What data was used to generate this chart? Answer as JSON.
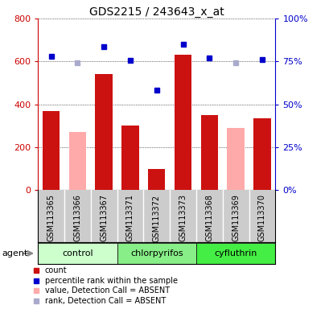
{
  "title": "GDS2215 / 243643_x_at",
  "samples": [
    "GSM113365",
    "GSM113366",
    "GSM113367",
    "GSM113371",
    "GSM113372",
    "GSM113373",
    "GSM113368",
    "GSM113369",
    "GSM113370"
  ],
  "groups": [
    {
      "name": "control",
      "color": "#ccffcc",
      "samples": [
        0,
        1,
        2
      ]
    },
    {
      "name": "chlorpyrifos",
      "color": "#88ee88",
      "samples": [
        3,
        4,
        5
      ]
    },
    {
      "name": "cyfluthrin",
      "color": "#44ee44",
      "samples": [
        6,
        7,
        8
      ]
    }
  ],
  "count_values": [
    370,
    null,
    540,
    300,
    100,
    630,
    350,
    null,
    335
  ],
  "count_absent": [
    null,
    270,
    null,
    null,
    null,
    null,
    null,
    290,
    null
  ],
  "rank_values": [
    625,
    null,
    670,
    605,
    465,
    680,
    615,
    null,
    610
  ],
  "rank_absent": [
    null,
    595,
    null,
    null,
    null,
    null,
    null,
    595,
    null
  ],
  "ylim_left": [
    0,
    800
  ],
  "yticks_left": [
    0,
    200,
    400,
    600,
    800
  ],
  "yticks_right": [
    0,
    25,
    50,
    75,
    100
  ],
  "bar_color_present": "#cc1111",
  "bar_color_absent": "#ffaaaa",
  "dot_color_present": "#0000cc",
  "dot_color_absent": "#aaaacc",
  "grid_color": "#000000",
  "bg_color": "#cccccc",
  "left_axis_color": "#cc0000",
  "right_axis_color": "#0000cc"
}
